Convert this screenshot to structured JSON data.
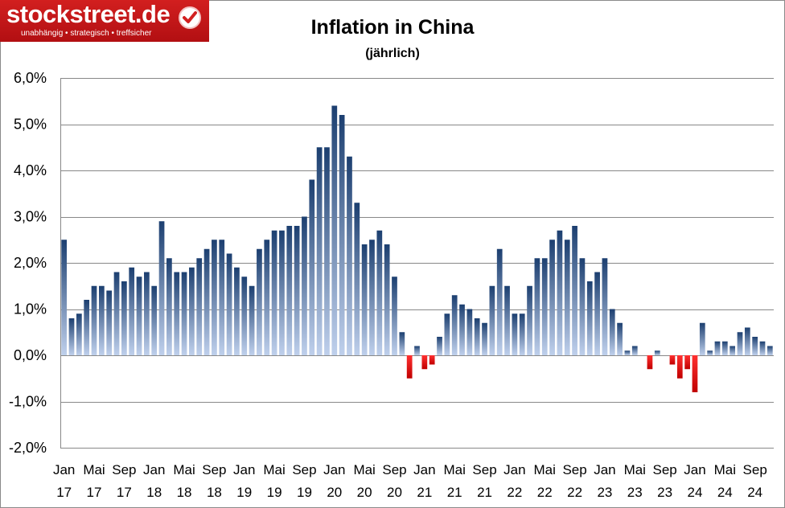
{
  "branding": {
    "logo_text": "stockstreet.de",
    "logo_tagline": "unabhängig • strategisch • treffsicher"
  },
  "chart_data": {
    "type": "bar",
    "title": "Inflation in China",
    "subtitle": "(jährlich)",
    "xlabel": "",
    "ylabel": "",
    "ylim": [
      -2.0,
      6.0
    ],
    "y_ticks": [
      6.0,
      5.0,
      4.0,
      3.0,
      2.0,
      1.0,
      0.0,
      -1.0,
      -2.0
    ],
    "y_tick_labels": [
      "6,0%",
      "5,0%",
      "4,0%",
      "3,0%",
      "2,0%",
      "1,0%",
      "0,0%",
      "-1,0%",
      "-2,0%"
    ],
    "grid": true,
    "colors": {
      "positive_top": "#1c3f70",
      "positive_bottom": "#bfd0ec",
      "negative": "#e40000",
      "grid": "#888888"
    },
    "x_tick_labels": [
      {
        "month": "Jan",
        "year": "17"
      },
      {
        "month": "Mai",
        "year": "17"
      },
      {
        "month": "Sep",
        "year": "17"
      },
      {
        "month": "Jan",
        "year": "18"
      },
      {
        "month": "Mai",
        "year": "18"
      },
      {
        "month": "Sep",
        "year": "18"
      },
      {
        "month": "Jan",
        "year": "19"
      },
      {
        "month": "Mai",
        "year": "19"
      },
      {
        "month": "Sep",
        "year": "19"
      },
      {
        "month": "Jan",
        "year": "20"
      },
      {
        "month": "Mai",
        "year": "20"
      },
      {
        "month": "Sep",
        "year": "20"
      },
      {
        "month": "Jan",
        "year": "21"
      },
      {
        "month": "Mai",
        "year": "21"
      },
      {
        "month": "Sep",
        "year": "21"
      },
      {
        "month": "Jan",
        "year": "22"
      },
      {
        "month": "Mai",
        "year": "22"
      },
      {
        "month": "Sep",
        "year": "22"
      },
      {
        "month": "Jan",
        "year": "23"
      },
      {
        "month": "Mai",
        "year": "23"
      },
      {
        "month": "Sep",
        "year": "23"
      },
      {
        "month": "Jan",
        "year": "24"
      },
      {
        "month": "Mai",
        "year": "24"
      },
      {
        "month": "Sep",
        "year": "24"
      }
    ],
    "categories": [
      "Jan 17",
      "Feb 17",
      "Mär 17",
      "Apr 17",
      "Mai 17",
      "Jun 17",
      "Jul 17",
      "Aug 17",
      "Sep 17",
      "Okt 17",
      "Nov 17",
      "Dez 17",
      "Jan 18",
      "Feb 18",
      "Mär 18",
      "Apr 18",
      "Mai 18",
      "Jun 18",
      "Jul 18",
      "Aug 18",
      "Sep 18",
      "Okt 18",
      "Nov 18",
      "Dez 18",
      "Jan 19",
      "Feb 19",
      "Mär 19",
      "Apr 19",
      "Mai 19",
      "Jun 19",
      "Jul 19",
      "Aug 19",
      "Sep 19",
      "Okt 19",
      "Nov 19",
      "Dez 19",
      "Jan 20",
      "Feb 20",
      "Mär 20",
      "Apr 20",
      "Mai 20",
      "Jun 20",
      "Jul 20",
      "Aug 20",
      "Sep 20",
      "Okt 20",
      "Nov 20",
      "Dez 20",
      "Jan 21",
      "Feb 21",
      "Mär 21",
      "Apr 21",
      "Mai 21",
      "Jun 21",
      "Jul 21",
      "Aug 21",
      "Sep 21",
      "Okt 21",
      "Nov 21",
      "Dez 21",
      "Jan 22",
      "Feb 22",
      "Mär 22",
      "Apr 22",
      "Mai 22",
      "Jun 22",
      "Jul 22",
      "Aug 22",
      "Sep 22",
      "Okt 22",
      "Nov 22",
      "Dez 22",
      "Jan 23",
      "Feb 23",
      "Mär 23",
      "Apr 23",
      "Mai 23",
      "Jun 23",
      "Jul 23",
      "Aug 23",
      "Sep 23",
      "Okt 23",
      "Nov 23",
      "Dez 23",
      "Jan 24",
      "Feb 24",
      "Mär 24",
      "Apr 24",
      "Mai 24",
      "Jun 24",
      "Jul 24",
      "Aug 24",
      "Sep 24",
      "Okt 24",
      "Nov 24"
    ],
    "values": [
      2.5,
      0.8,
      0.9,
      1.2,
      1.5,
      1.5,
      1.4,
      1.8,
      1.6,
      1.9,
      1.7,
      1.8,
      1.5,
      2.9,
      2.1,
      1.8,
      1.8,
      1.9,
      2.1,
      2.3,
      2.5,
      2.5,
      2.2,
      1.9,
      1.7,
      1.5,
      2.3,
      2.5,
      2.7,
      2.7,
      2.8,
      2.8,
      3.0,
      3.8,
      4.5,
      4.5,
      5.4,
      5.2,
      4.3,
      3.3,
      2.4,
      2.5,
      2.7,
      2.4,
      1.7,
      0.5,
      -0.5,
      0.2,
      -0.3,
      -0.2,
      0.4,
      0.9,
      1.3,
      1.1,
      1.0,
      0.8,
      0.7,
      1.5,
      2.3,
      1.5,
      0.9,
      0.9,
      1.5,
      2.1,
      2.1,
      2.5,
      2.7,
      2.5,
      2.8,
      2.1,
      1.6,
      1.8,
      2.1,
      1.0,
      0.7,
      0.1,
      0.2,
      0.0,
      -0.3,
      0.1,
      0.0,
      -0.2,
      -0.5,
      -0.3,
      -0.8,
      0.7,
      0.1,
      0.3,
      0.3,
      0.2,
      0.5,
      0.6,
      0.4,
      0.3,
      0.2
    ]
  }
}
